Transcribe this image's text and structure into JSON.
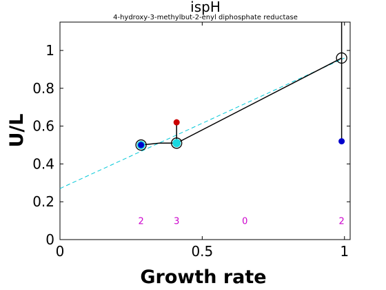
{
  "chart_data": {
    "type": "line",
    "title": "ispH",
    "subtitle": "4-hydroxy-3-methylbut-2-enyl diphosphate reductase",
    "xlabel": "Growth rate",
    "ylabel": "U/L",
    "xlim": [
      0,
      1.02
    ],
    "ylim": [
      0,
      1.15
    ],
    "xticks": [
      0,
      0.5,
      1
    ],
    "xtick_labels": [
      "0",
      "0.5",
      "1"
    ],
    "yticks": [
      0,
      0.2,
      0.4,
      0.6,
      0.8,
      1
    ],
    "ytick_labels": [
      "0",
      "0.2",
      "0.4",
      "0.6",
      "0.8",
      "1"
    ],
    "grid": false,
    "fit_line": {
      "color": "#00c8d8",
      "points": [
        [
          0,
          0.27
        ],
        [
          1,
          0.96
        ]
      ]
    },
    "model_line": {
      "color": "#000000",
      "points": [
        [
          0.285,
          0.5
        ],
        [
          0.35,
          0.51
        ],
        [
          0.41,
          0.51
        ],
        [
          0.99,
          0.96
        ]
      ]
    },
    "open_circles": [
      {
        "x": 0.285,
        "y": 0.5
      },
      {
        "x": 0.41,
        "y": 0.51
      },
      {
        "x": 0.99,
        "y": 0.96
      }
    ],
    "cyan_points": [
      {
        "x": 0.285,
        "y": 0.5,
        "color": "#1ad8e0"
      },
      {
        "x": 0.41,
        "y": 0.51,
        "color": "#1ad8e0"
      }
    ],
    "blue_points": [
      {
        "x": 0.285,
        "y": 0.5,
        "color": "#0000cc"
      },
      {
        "x": 0.99,
        "y": 0.52,
        "color": "#0000cc"
      }
    ],
    "red_points": [
      {
        "x": 0.41,
        "y": 0.62,
        "color": "#cc0000"
      }
    ],
    "error_bars": [
      {
        "x": 0.285,
        "y_from": 0.5,
        "y_to": 0.5
      },
      {
        "x": 0.41,
        "y_from": 0.51,
        "y_to": 0.62
      },
      {
        "x": 0.99,
        "y_from": 0.52,
        "y_to": 1.15
      }
    ],
    "annotations": [
      {
        "x": 0.285,
        "y": 0.1,
        "text": "2",
        "color": "#cc00cc"
      },
      {
        "x": 0.41,
        "y": 0.1,
        "text": "3",
        "color": "#cc00cc"
      },
      {
        "x": 0.65,
        "y": 0.1,
        "text": "0",
        "color": "#cc00cc"
      },
      {
        "x": 0.99,
        "y": 0.1,
        "text": "2",
        "color": "#cc00cc"
      }
    ]
  }
}
